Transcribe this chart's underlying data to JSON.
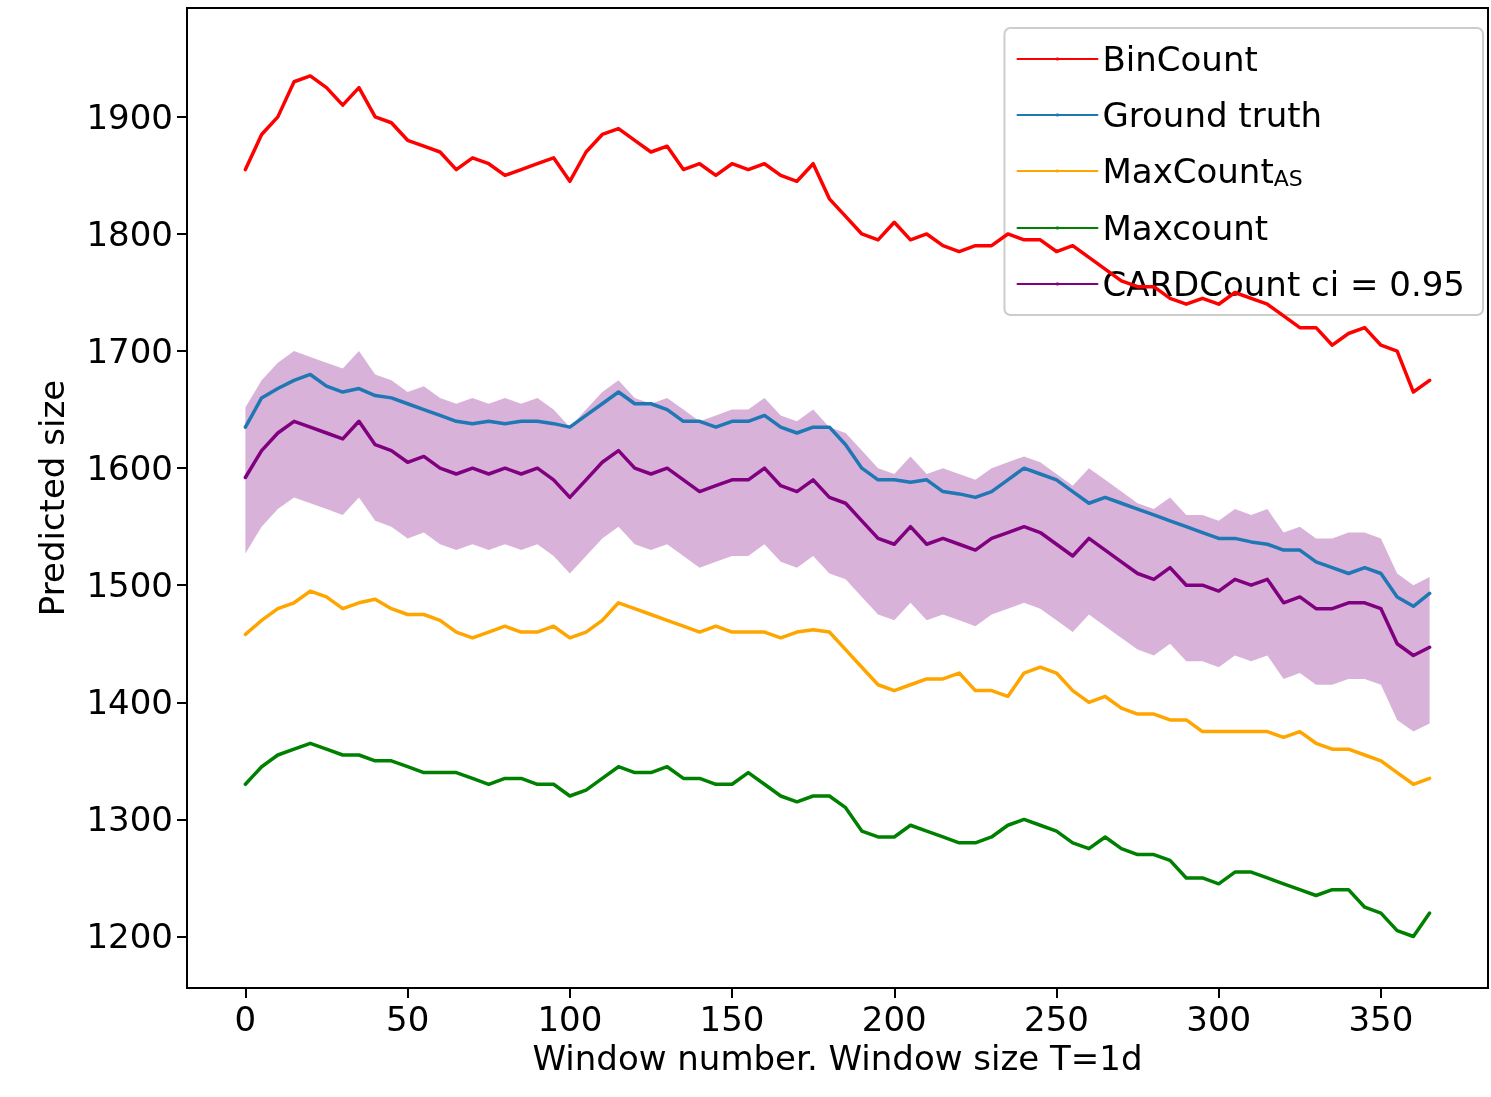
{
  "chart_data": {
    "type": "line",
    "xlabel": "Window number. Window size T=1d",
    "ylabel": "Predicted size",
    "x": [
      0,
      5,
      10,
      15,
      20,
      25,
      30,
      35,
      40,
      45,
      50,
      55,
      60,
      65,
      70,
      75,
      80,
      85,
      90,
      95,
      100,
      105,
      110,
      115,
      120,
      125,
      130,
      135,
      140,
      145,
      150,
      155,
      160,
      165,
      170,
      175,
      180,
      185,
      190,
      195,
      200,
      205,
      210,
      215,
      220,
      225,
      230,
      235,
      240,
      245,
      250,
      255,
      260,
      265,
      270,
      275,
      280,
      285,
      290,
      295,
      300,
      305,
      310,
      315,
      320,
      325,
      330,
      335,
      340,
      345,
      350,
      355,
      360,
      365
    ],
    "xlim": [
      -18,
      383
    ],
    "xticks": [
      0,
      50,
      100,
      150,
      200,
      250,
      300,
      350
    ],
    "ylim": [
      1156,
      1993
    ],
    "yticks": [
      1200,
      1300,
      1400,
      1500,
      1600,
      1700,
      1800,
      1900
    ],
    "grid": false,
    "legend": "top right",
    "marker": "none",
    "line_style": "solid",
    "series": [
      {
        "name": "BinCount",
        "color": "#ff0000",
        "values": [
          1855,
          1885,
          1900,
          1930,
          1935,
          1925,
          1910,
          1925,
          1900,
          1895,
          1880,
          1875,
          1870,
          1855,
          1865,
          1860,
          1850,
          1855,
          1860,
          1865,
          1845,
          1870,
          1885,
          1890,
          1880,
          1870,
          1875,
          1855,
          1860,
          1850,
          1860,
          1855,
          1860,
          1850,
          1845,
          1860,
          1830,
          1815,
          1800,
          1795,
          1810,
          1795,
          1800,
          1790,
          1785,
          1790,
          1790,
          1800,
          1795,
          1795,
          1785,
          1790,
          1780,
          1770,
          1760,
          1755,
          1755,
          1745,
          1740,
          1745,
          1740,
          1750,
          1745,
          1740,
          1730,
          1720,
          1720,
          1705,
          1715,
          1720,
          1705,
          1700,
          1665,
          1675
        ]
      },
      {
        "name": "Ground truth",
        "color": "#1f77b4",
        "values": [
          1635,
          1660,
          1668,
          1675,
          1680,
          1670,
          1665,
          1668,
          1662,
          1660,
          1655,
          1650,
          1645,
          1640,
          1638,
          1640,
          1638,
          1640,
          1640,
          1638,
          1635,
          1645,
          1655,
          1665,
          1655,
          1655,
          1650,
          1640,
          1640,
          1635,
          1640,
          1640,
          1645,
          1635,
          1630,
          1635,
          1635,
          1620,
          1600,
          1590,
          1590,
          1588,
          1590,
          1580,
          1578,
          1575,
          1580,
          1590,
          1600,
          1595,
          1590,
          1580,
          1570,
          1575,
          1570,
          1565,
          1560,
          1555,
          1550,
          1545,
          1540,
          1540,
          1537,
          1535,
          1530,
          1530,
          1520,
          1515,
          1510,
          1515,
          1510,
          1490,
          1482,
          1493
        ]
      },
      {
        "name": "MaxCount$_{AS}$",
        "color": "#ffa500",
        "values": [
          1458,
          1470,
          1480,
          1485,
          1495,
          1490,
          1480,
          1485,
          1488,
          1480,
          1475,
          1475,
          1470,
          1460,
          1455,
          1460,
          1465,
          1460,
          1460,
          1465,
          1455,
          1460,
          1470,
          1485,
          1480,
          1475,
          1470,
          1465,
          1460,
          1465,
          1460,
          1460,
          1460,
          1455,
          1460,
          1462,
          1460,
          1445,
          1430,
          1415,
          1410,
          1415,
          1420,
          1420,
          1425,
          1410,
          1410,
          1405,
          1425,
          1430,
          1425,
          1410,
          1400,
          1405,
          1395,
          1390,
          1390,
          1385,
          1385,
          1375,
          1375,
          1375,
          1375,
          1375,
          1370,
          1375,
          1365,
          1360,
          1360,
          1355,
          1350,
          1340,
          1330,
          1335
        ]
      },
      {
        "name": "Maxcount",
        "color": "#008000",
        "values": [
          1330,
          1345,
          1355,
          1360,
          1365,
          1360,
          1355,
          1355,
          1350,
          1350,
          1345,
          1340,
          1340,
          1340,
          1335,
          1330,
          1335,
          1335,
          1330,
          1330,
          1320,
          1325,
          1335,
          1345,
          1340,
          1340,
          1345,
          1335,
          1335,
          1330,
          1330,
          1340,
          1330,
          1320,
          1315,
          1320,
          1320,
          1310,
          1290,
          1285,
          1285,
          1295,
          1290,
          1285,
          1280,
          1280,
          1285,
          1295,
          1300,
          1295,
          1290,
          1280,
          1275,
          1285,
          1275,
          1270,
          1270,
          1265,
          1250,
          1250,
          1245,
          1255,
          1255,
          1250,
          1245,
          1240,
          1235,
          1240,
          1240,
          1225,
          1220,
          1205,
          1200,
          1220
        ]
      },
      {
        "name": "CARDCount ci = 0.95",
        "color": "#800080",
        "values": [
          1592,
          1615,
          1630,
          1640,
          1635,
          1630,
          1625,
          1640,
          1620,
          1615,
          1605,
          1610,
          1600,
          1595,
          1600,
          1595,
          1600,
          1595,
          1600,
          1590,
          1575,
          1590,
          1605,
          1615,
          1600,
          1595,
          1600,
          1590,
          1580,
          1585,
          1590,
          1590,
          1600,
          1585,
          1580,
          1590,
          1575,
          1570,
          1555,
          1540,
          1535,
          1550,
          1535,
          1540,
          1535,
          1530,
          1540,
          1545,
          1550,
          1545,
          1535,
          1525,
          1540,
          1530,
          1520,
          1510,
          1505,
          1515,
          1500,
          1500,
          1495,
          1505,
          1500,
          1505,
          1485,
          1490,
          1480,
          1480,
          1485,
          1485,
          1480,
          1450,
          1440,
          1447
        ],
        "lower": [
          1527,
          1550,
          1565,
          1575,
          1570,
          1565,
          1560,
          1575,
          1555,
          1550,
          1540,
          1545,
          1535,
          1530,
          1535,
          1530,
          1535,
          1530,
          1535,
          1525,
          1510,
          1525,
          1540,
          1550,
          1535,
          1530,
          1535,
          1525,
          1515,
          1520,
          1525,
          1525,
          1535,
          1520,
          1515,
          1525,
          1510,
          1505,
          1490,
          1475,
          1470,
          1485,
          1470,
          1475,
          1470,
          1465,
          1475,
          1480,
          1485,
          1480,
          1470,
          1460,
          1475,
          1465,
          1455,
          1445,
          1440,
          1450,
          1435,
          1435,
          1430,
          1440,
          1435,
          1440,
          1420,
          1425,
          1415,
          1415,
          1420,
          1420,
          1415,
          1385,
          1375,
          1382
        ],
        "upper": [
          1652,
          1675,
          1690,
          1700,
          1695,
          1690,
          1685,
          1700,
          1680,
          1675,
          1665,
          1670,
          1660,
          1655,
          1660,
          1655,
          1660,
          1655,
          1660,
          1650,
          1635,
          1650,
          1665,
          1675,
          1660,
          1655,
          1660,
          1650,
          1640,
          1645,
          1650,
          1650,
          1660,
          1645,
          1640,
          1650,
          1635,
          1630,
          1615,
          1600,
          1595,
          1610,
          1595,
          1600,
          1595,
          1590,
          1600,
          1605,
          1610,
          1605,
          1595,
          1585,
          1600,
          1590,
          1580,
          1570,
          1565,
          1575,
          1560,
          1560,
          1555,
          1565,
          1560,
          1565,
          1545,
          1550,
          1540,
          1540,
          1545,
          1545,
          1540,
          1510,
          1500,
          1507
        ]
      }
    ]
  }
}
